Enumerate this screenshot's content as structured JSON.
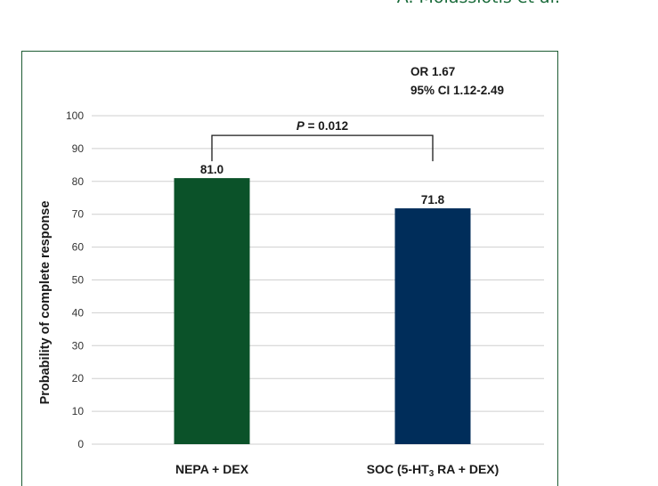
{
  "header": {
    "running_head": "A. Molassiotis et al."
  },
  "annotations": {
    "or_text": "OR 1.67",
    "ci_text": "95% CI 1.12-2.49",
    "p_italic": "P",
    "p_value": " = 0.012"
  },
  "colors": {
    "frame": "#1e5c33",
    "grid": "#cfcfcf",
    "running_head": "#1a6b3a"
  },
  "chart_data": {
    "type": "bar",
    "title": "",
    "ylabel": "Probability of complete response",
    "xlabel": "",
    "ylim": [
      0,
      100
    ],
    "yticks": [
      0,
      10,
      20,
      30,
      40,
      50,
      60,
      70,
      80,
      90,
      100
    ],
    "grid": true,
    "categories": [
      {
        "main": "NEPA + DEX",
        "sub": "",
        "tail": ""
      },
      {
        "main": "SOC (5-HT",
        "sub": "3",
        "tail": " RA + DEX)"
      }
    ],
    "values": [
      81.0,
      71.8
    ],
    "value_labels": [
      "81.0",
      "71.8"
    ],
    "bar_colors": [
      "#0b5229",
      "#002d5a"
    ],
    "comparison": {
      "from": 0,
      "to": 1,
      "level": 94,
      "label_ref": "annotations.p_value"
    }
  }
}
